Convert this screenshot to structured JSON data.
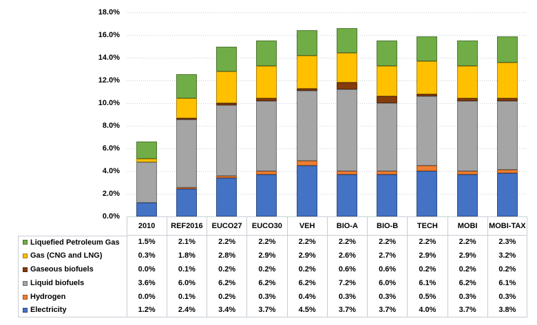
{
  "chart_data": {
    "type": "bar",
    "stacked": true,
    "title": "",
    "xlabel": "",
    "ylabel": "",
    "categories": [
      "2010",
      "REF2016",
      "EUCO27",
      "EUCO30",
      "VEH",
      "BIO-A",
      "BIO-B",
      "TECH",
      "MOBI",
      "MOBI-TAX"
    ],
    "series": [
      {
        "name": "Liquefied Petroleum Gas",
        "color": "#70AD47",
        "values": [
          1.5,
          2.1,
          2.2,
          2.2,
          2.2,
          2.2,
          2.2,
          2.2,
          2.2,
          2.3
        ]
      },
      {
        "name": "Gas (CNG and LNG)",
        "color": "#FFC000",
        "values": [
          0.3,
          1.8,
          2.8,
          2.9,
          2.9,
          2.6,
          2.7,
          2.9,
          2.9,
          3.2
        ]
      },
      {
        "name": "Gaseous biofuels",
        "color": "#843C0C",
        "values": [
          0.0,
          0.1,
          0.2,
          0.2,
          0.2,
          0.6,
          0.6,
          0.2,
          0.2,
          0.2
        ]
      },
      {
        "name": "Liquid biofuels",
        "color": "#A5A5A5",
        "values": [
          3.6,
          6.0,
          6.2,
          6.2,
          6.2,
          7.2,
          6.0,
          6.1,
          6.2,
          6.1
        ]
      },
      {
        "name": "Hydrogen",
        "color": "#ED7D31",
        "values": [
          0.0,
          0.1,
          0.2,
          0.3,
          0.4,
          0.3,
          0.3,
          0.5,
          0.3,
          0.3
        ]
      },
      {
        "name": "Electricity",
        "color": "#4472C4",
        "values": [
          1.2,
          2.4,
          3.4,
          3.7,
          4.5,
          3.7,
          3.7,
          4.0,
          3.7,
          3.8
        ]
      }
    ],
    "stack_order_bottom_to_top": [
      "Electricity",
      "Hydrogen",
      "Liquid biofuels",
      "Gaseous biofuels",
      "Gas (CNG and LNG)",
      "Liquefied Petroleum Gas"
    ],
    "value_format": "0.0%",
    "ylim": [
      0,
      18
    ],
    "y_tick_step": 2,
    "y_ticks": [
      "0.0%",
      "2.0%",
      "4.0%",
      "6.0%",
      "8.0%",
      "10.0%",
      "12.0%",
      "14.0%",
      "16.0%",
      "18.0%"
    ],
    "grid": "horizontal-dotted",
    "legend_position": "data-table-left"
  }
}
